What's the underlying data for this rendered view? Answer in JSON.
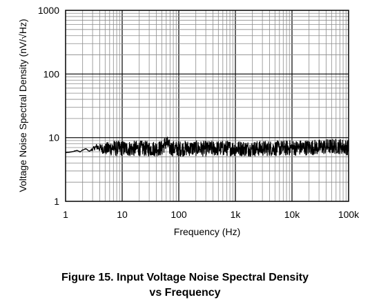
{
  "chart_data": {
    "type": "line",
    "xlabel": "Frequency (Hz)",
    "ylabel": "Voltage Noise Spectral Density (nV/√Hz)",
    "xscale": "log",
    "yscale": "log",
    "xlim": [
      1,
      100000
    ],
    "ylim": [
      1,
      1000
    ],
    "grid": true,
    "x_tick_labels": [
      "1",
      "10",
      "100",
      "1k",
      "10k",
      "100k"
    ],
    "y_tick_labels": [
      "1",
      "10",
      "100",
      "1000"
    ],
    "series": [
      {
        "color": "#000000",
        "x": [
          1,
          1.3,
          1.6,
          1.8,
          2,
          2.3,
          2.6,
          3,
          3.5,
          4,
          5,
          6,
          7,
          8,
          10,
          15,
          20,
          30,
          50,
          60,
          70,
          100,
          150,
          200,
          300,
          500,
          1000,
          2000,
          3000,
          5000,
          10000,
          20000,
          30000,
          50000,
          70000,
          100000
        ],
        "y": [
          5.8,
          6.0,
          6.3,
          6.0,
          6.4,
          6.7,
          6.1,
          6.6,
          7.2,
          6.9,
          6.6,
          6.8,
          7.0,
          6.7,
          6.8,
          6.7,
          6.8,
          6.7,
          6.8,
          8.5,
          6.8,
          6.7,
          6.8,
          6.8,
          6.7,
          6.8,
          6.8,
          6.7,
          6.8,
          6.8,
          6.9,
          7.0,
          7.1,
          7.3,
          7.3,
          7.0
        ],
        "noise": 0.12
      }
    ]
  },
  "caption": {
    "line1": "Figure 15. Input Voltage Noise Spectral Density",
    "line2": "vs Frequency"
  }
}
